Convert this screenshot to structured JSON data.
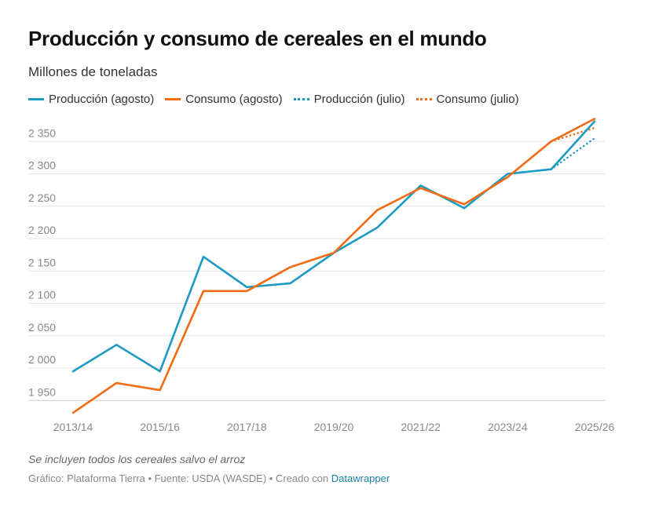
{
  "chart_data": {
    "type": "line",
    "title": "Producción y consumo de cereales en el mundo",
    "subtitle": "Millones de toneladas",
    "x": [
      "2013/14",
      "2014/15",
      "2015/16",
      "2016/17",
      "2017/18",
      "2018/19",
      "2019/20",
      "2020/21",
      "2021/22",
      "2022/23",
      "2023/24",
      "2024/25",
      "2025/26"
    ],
    "xticks": [
      "2013/14",
      "2015/16",
      "2017/18",
      "2019/20",
      "2021/22",
      "2023/24",
      "2025/26"
    ],
    "yticks": [
      1950,
      2000,
      2050,
      2100,
      2150,
      2200,
      2250,
      2300,
      2350
    ],
    "ytick_labels": [
      "1 950",
      "2 000",
      "2 050",
      "2 100",
      "2 150",
      "2 200",
      "2 250",
      "2 300",
      "2 350"
    ],
    "ylim": [
      1930,
      2390
    ],
    "series": [
      {
        "name": "Producción (agosto)",
        "color": "#1d9ac4",
        "style": "solid",
        "values": [
          1995,
          2036,
          1995,
          2172,
          2125,
          2131,
          2178,
          2217,
          2282,
          2247,
          2300,
          2307,
          2381
        ]
      },
      {
        "name": "Consumo (agosto)",
        "color": "#f26b12",
        "style": "solid",
        "values": [
          1931,
          1977,
          1966,
          2119,
          2119,
          2156,
          2178,
          2244,
          2278,
          2253,
          2295,
          2350,
          2385
        ]
      },
      {
        "name": "Producción (julio)",
        "color": "#1d9ac4",
        "style": "dotted",
        "values": [
          null,
          null,
          null,
          null,
          null,
          null,
          null,
          null,
          null,
          null,
          null,
          2307,
          2355
        ]
      },
      {
        "name": "Consumo (julio)",
        "color": "#f26b12",
        "style": "dotted",
        "values": [
          null,
          null,
          null,
          null,
          null,
          null,
          null,
          null,
          null,
          null,
          null,
          2350,
          2371
        ]
      }
    ],
    "legend": "top-left",
    "grid": true
  },
  "footer": {
    "note": "Se incluyen todos los cereales salvo el arroz",
    "credit": "Gráfico: Plataforma Tierra • Fuente: USDA (WASDE) • Creado con ",
    "link": "Datawrapper"
  }
}
